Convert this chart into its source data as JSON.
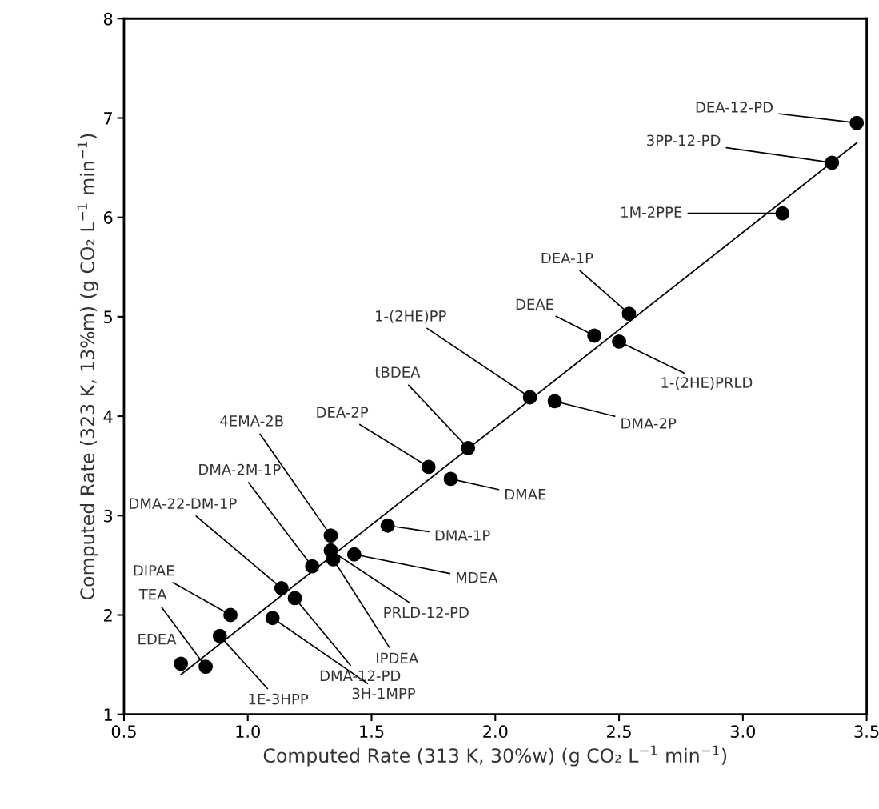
{
  "chart_data": {
    "type": "scatter",
    "xlabel": "Computed Rate (313 K, 30%w) (g CO₂ L$^{−1}$ min$^{−1}$)",
    "ylabel": "Computed Rate (323 K, 13%m) (g CO₂ L$^{−1}$ min$^{−1}$)",
    "xlim": [
      0.5,
      3.5
    ],
    "ylim": [
      1,
      8
    ],
    "xticks": [
      0.5,
      {
        "value": 1,
        "label": "1.0"
      },
      1.5,
      {
        "value": 2,
        "label": "2.0"
      },
      2.5,
      {
        "value": 3,
        "label": "3.0"
      },
      3.5
    ],
    "yticks": [
      1,
      2,
      3,
      4,
      5,
      6,
      7,
      8
    ],
    "grid": false,
    "series": [
      {
        "color": "#000000",
        "marker": "circle",
        "x": [
          3.46,
          3.36,
          3.16,
          2.54,
          2.4,
          2.5,
          2.14,
          2.24,
          1.89,
          1.82,
          1.73,
          1.335,
          1.26,
          1.136,
          1.565,
          1.43,
          1.335,
          1.345,
          1.19,
          1.1,
          0.93,
          0.83,
          0.73,
          0.887
        ],
        "values": [
          6.95,
          6.55,
          6.04,
          5.03,
          4.81,
          4.75,
          4.19,
          4.15,
          3.68,
          3.37,
          3.49,
          2.8,
          2.49,
          2.27,
          2.9,
          2.61,
          2.65,
          2.56,
          2.17,
          1.97,
          2.0,
          1.48,
          1.51,
          1.79
        ]
      },
      {
        "type": "line",
        "color": "#000000",
        "x": [
          0.73,
          3.46
        ],
        "values": [
          1.4,
          6.75
        ]
      }
    ],
    "annotations": [
      {
        "text": "DEA-12-PD",
        "x": 3.46,
        "y": 6.95
      },
      {
        "text": "3PP-12-PD",
        "x": 3.36,
        "y": 6.55
      },
      {
        "text": "1M-2PPE",
        "x": 3.16,
        "y": 6.04
      },
      {
        "text": "DEA-1P",
        "x": 2.54,
        "y": 5.03
      },
      {
        "text": "DEAE",
        "x": 2.4,
        "y": 4.81
      },
      {
        "text": "1-(2HE)PRLD",
        "x": 2.5,
        "y": 4.75
      },
      {
        "text": "1-(2HE)PP",
        "x": 2.14,
        "y": 4.19
      },
      {
        "text": "DMA-2P",
        "x": 2.24,
        "y": 4.15
      },
      {
        "text": "tBDEA",
        "x": 1.89,
        "y": 3.68
      },
      {
        "text": "DMAE",
        "x": 1.82,
        "y": 3.37
      },
      {
        "text": "DEA-2P",
        "x": 1.73,
        "y": 3.49
      },
      {
        "text": "4EMA-2B",
        "x": 1.335,
        "y": 2.8
      },
      {
        "text": "DMA-2M-1P",
        "x": 1.26,
        "y": 2.49
      },
      {
        "text": "DMA-22-DM-1P",
        "x": 1.136,
        "y": 2.27
      },
      {
        "text": "DMA-1P",
        "x": 1.565,
        "y": 2.9
      },
      {
        "text": "MDEA",
        "x": 1.43,
        "y": 2.61
      },
      {
        "text": "PRLD-12-PD",
        "x": 1.335,
        "y": 2.65
      },
      {
        "text": "IPDEA",
        "x": 1.345,
        "y": 2.56
      },
      {
        "text": "DMA-12-PD",
        "x": 1.19,
        "y": 2.17
      },
      {
        "text": "3H-1MPP",
        "x": 1.1,
        "y": 1.97
      },
      {
        "text": "DIPAE",
        "x": 0.93,
        "y": 2.0
      },
      {
        "text": "TEA",
        "x": 0.83,
        "y": 1.48
      },
      {
        "text": "EDEA",
        "x": 0.73,
        "y": 1.51
      },
      {
        "text": "1E-3HPP",
        "x": 0.887,
        "y": 1.79
      }
    ]
  }
}
